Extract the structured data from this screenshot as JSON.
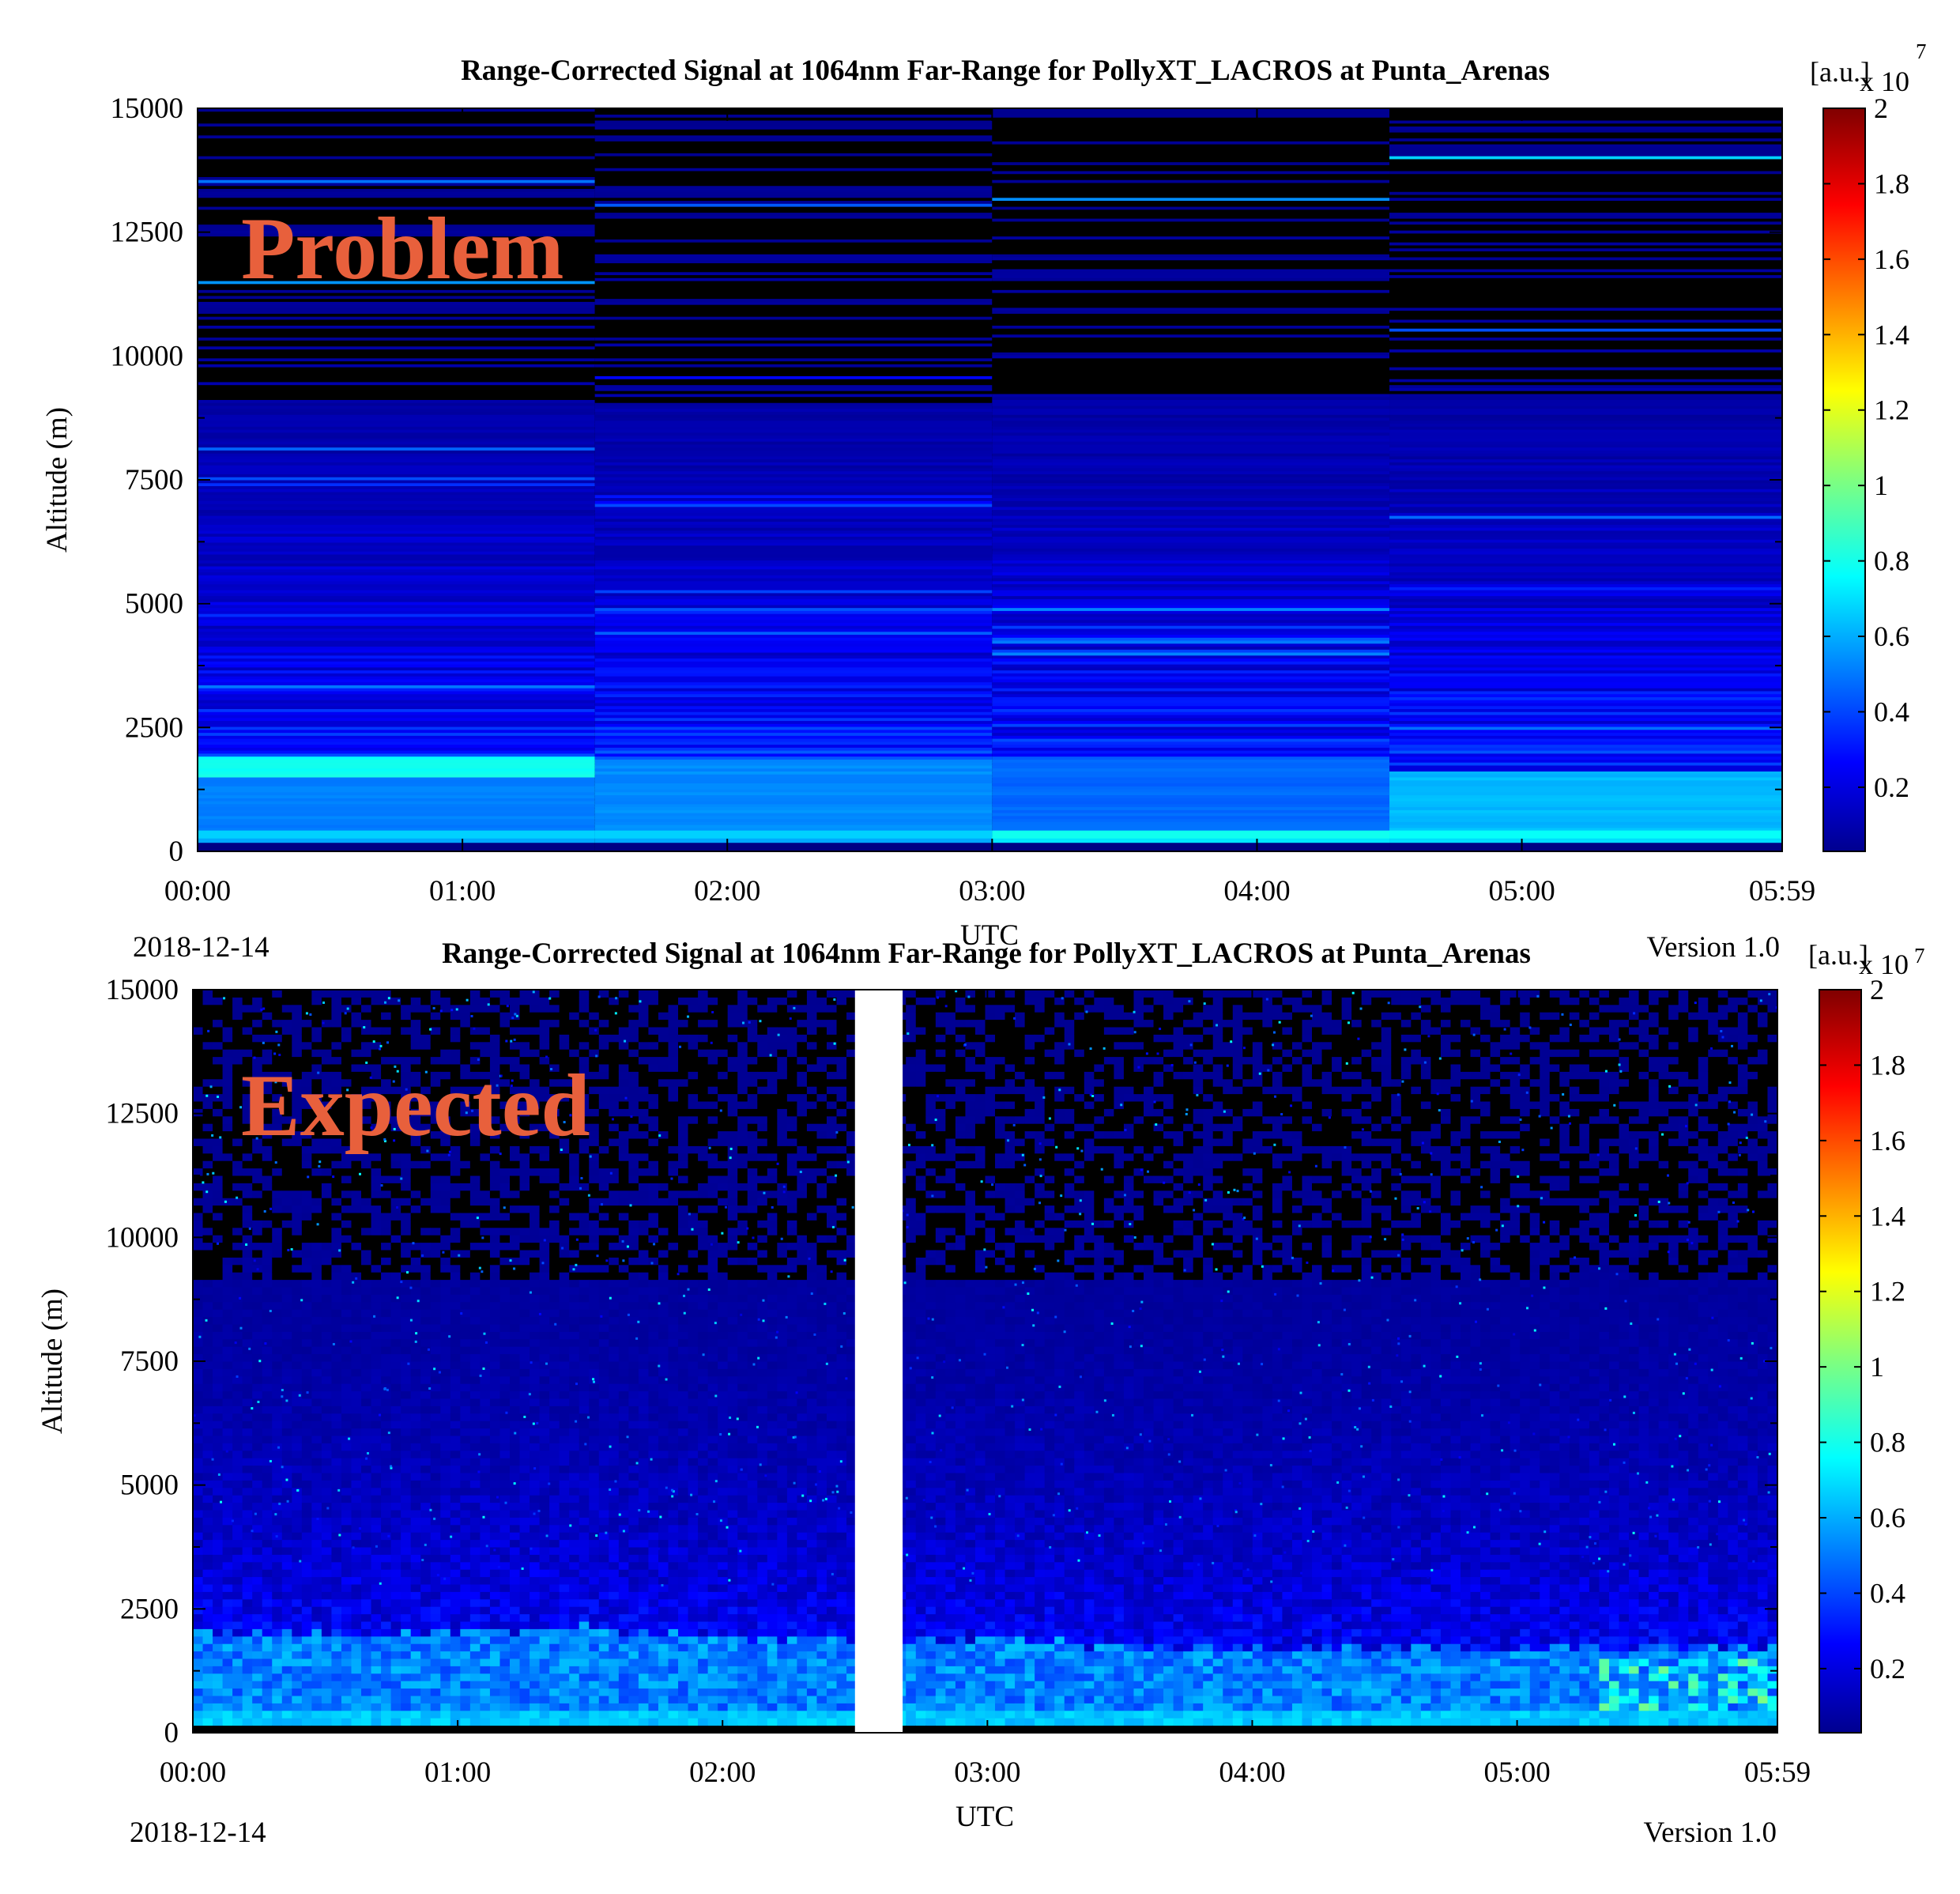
{
  "chart_data": [
    {
      "type": "heatmap",
      "title": "Range-Corrected Signal at 1064nm Far-Range for PollyXT_LACROS at Punta_Arenas",
      "xlabel": "UTC",
      "ylabel": "Altitude (m)",
      "x_tick_labels": [
        "00:00",
        "01:00",
        "02:00",
        "03:00",
        "04:00",
        "05:00",
        "05:59"
      ],
      "x_ticks_hours": [
        0,
        1,
        2,
        3,
        4,
        5,
        5.983
      ],
      "xlim_hours": [
        0,
        5.983
      ],
      "y_ticks": [
        0,
        2500,
        5000,
        7500,
        10000,
        12500,
        15000
      ],
      "ylim": [
        0,
        15000
      ],
      "colorbar_label": "[a.u.]",
      "colorbar_exponent": "x 10",
      "colorbar_exponent_power": "7",
      "colorbar_ticks": [
        "0.2",
        "0.4",
        "0.6",
        "0.8",
        "1",
        "1.2",
        "1.4",
        "1.6",
        "1.8",
        "2"
      ],
      "colorbar_range": [
        0.03,
        2
      ],
      "colormap": "jet",
      "date_label": "2018-12-14",
      "version_label": "Version 1.0",
      "annotation": "Problem",
      "annotation_color": "#e8603c",
      "blocks_hours": [
        [
          0,
          1.5
        ],
        [
          1.5,
          3.0
        ],
        [
          3.0,
          4.5
        ],
        [
          4.5,
          5.983
        ]
      ],
      "block_layers": [
        {
          "base_from": 300,
          "base_to": 1500,
          "base_value": 0.55,
          "layer_from": 1500,
          "layer_to": 1900,
          "layer_value": 0.82,
          "surface_value": 0.6
        },
        {
          "base_from": 300,
          "base_to": 1850,
          "base_value": 0.57,
          "surface_value": 0.6
        },
        {
          "base_from": 300,
          "base_to": 1850,
          "base_value": 0.5,
          "surface_value": 0.72
        },
        {
          "base_from": 300,
          "base_to": 1600,
          "base_value": 0.66,
          "surface_value": 0.7
        }
      ]
    },
    {
      "type": "heatmap",
      "title": "Range-Corrected Signal at 1064nm Far-Range for PollyXT_LACROS at Punta_Arenas",
      "xlabel": "UTC",
      "ylabel": "Altitude (m)",
      "x_tick_labels": [
        "00:00",
        "01:00",
        "02:00",
        "03:00",
        "04:00",
        "05:00",
        "05:59"
      ],
      "x_ticks_hours": [
        0,
        1,
        2,
        3,
        4,
        5,
        5.983
      ],
      "xlim_hours": [
        0,
        5.983
      ],
      "y_ticks": [
        0,
        2500,
        5000,
        7500,
        10000,
        12500,
        15000
      ],
      "ylim": [
        0,
        15000
      ],
      "colorbar_label": "[a.u.]",
      "colorbar_exponent": "x 10",
      "colorbar_exponent_power": "7",
      "colorbar_ticks": [
        "0.2",
        "0.4",
        "0.6",
        "0.8",
        "1",
        "1.2",
        "1.4",
        "1.6",
        "1.8",
        "2"
      ],
      "colorbar_range": [
        0.03,
        2
      ],
      "colormap": "jet",
      "date_label": "2018-12-14",
      "version_label": "Version 1.0",
      "annotation": "Expected",
      "annotation_color": "#e8603c",
      "data_gap_hours": [
        2.5,
        2.68
      ],
      "boundary_layer_top_m": [
        [
          0.0,
          1950
        ],
        [
          0.5,
          1900
        ],
        [
          1.0,
          2000
        ],
        [
          1.5,
          2050
        ],
        [
          2.0,
          1850
        ],
        [
          2.5,
          1800
        ],
        [
          2.7,
          1750
        ],
        [
          3.0,
          1850
        ],
        [
          3.5,
          1700
        ],
        [
          4.0,
          1600
        ],
        [
          4.5,
          1700
        ],
        [
          5.0,
          1600
        ],
        [
          5.5,
          1650
        ],
        [
          5.983,
          1650
        ]
      ]
    }
  ]
}
